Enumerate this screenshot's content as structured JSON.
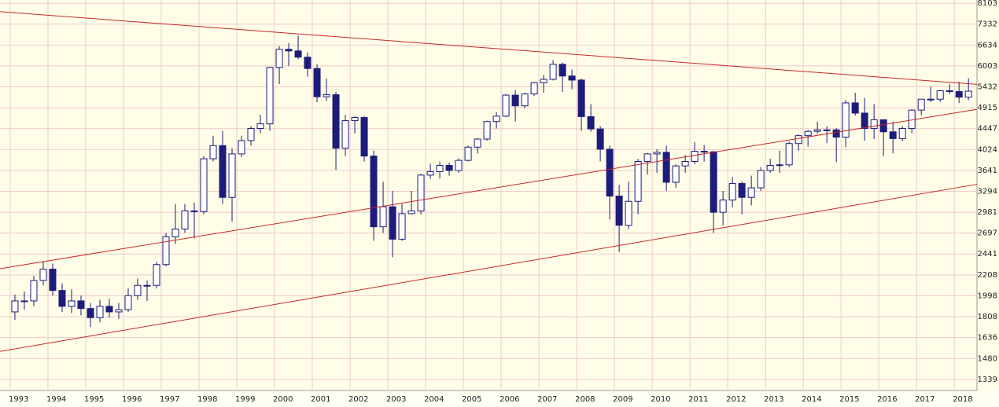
{
  "chart_data": {
    "type": "candlestick",
    "x": [
      1993.125,
      1993.375,
      1993.625,
      1993.875,
      1994.125,
      1994.375,
      1994.625,
      1994.875,
      1995.125,
      1995.375,
      1995.625,
      1995.875,
      1996.125,
      1996.375,
      1996.625,
      1996.875,
      1997.125,
      1997.375,
      1997.625,
      1997.875,
      1998.125,
      1998.375,
      1998.625,
      1998.875,
      1999.125,
      1999.375,
      1999.625,
      1999.875,
      2000.125,
      2000.375,
      2000.625,
      2000.875,
      2001.125,
      2001.375,
      2001.625,
      2001.875,
      2002.125,
      2002.375,
      2002.625,
      2002.875,
      2003.125,
      2003.375,
      2003.625,
      2003.875,
      2004.125,
      2004.375,
      2004.625,
      2004.875,
      2005.125,
      2005.375,
      2005.625,
      2005.875,
      2006.125,
      2006.375,
      2006.625,
      2006.875,
      2007.125,
      2007.375,
      2007.625,
      2007.875,
      2008.125,
      2008.375,
      2008.625,
      2008.875,
      2009.125,
      2009.375,
      2009.625,
      2009.875,
      2010.125,
      2010.375,
      2010.625,
      2010.875,
      2011.125,
      2011.375,
      2011.625,
      2011.875,
      2012.125,
      2012.375,
      2012.625,
      2012.875,
      2013.125,
      2013.375,
      2013.625,
      2013.875,
      2014.125,
      2014.375,
      2014.625,
      2014.875,
      2015.125,
      2015.375,
      2015.625,
      2015.875,
      2016.125,
      2016.375,
      2016.625,
      2016.875,
      2017.125,
      2017.375,
      2017.625,
      2017.875,
      2018.125,
      2018.375
    ],
    "open": [
      1850,
      1950,
      1950,
      2150,
      2270,
      2050,
      1900,
      1950,
      1880,
      1800,
      1900,
      1850,
      1870,
      2000,
      2100,
      2100,
      2320,
      2650,
      2750,
      3000,
      2990,
      3850,
      4100,
      3200,
      3940,
      4200,
      4450,
      4550,
      5960,
      6500,
      6450,
      6260,
      5930,
      5180,
      5230,
      4050,
      4620,
      4690,
      3900,
      2780,
      3060,
      2620,
      2960,
      3000,
      3560,
      3620,
      3730,
      3640,
      3820,
      4070,
      4230,
      4600,
      4720,
      5220,
      4960,
      5250,
      5540,
      5630,
      6050,
      5720,
      5610,
      4710,
      4440,
      4030,
      3220,
      2800,
      3140,
      3800,
      3940,
      3970,
      3440,
      3720,
      3800,
      3990,
      3980,
      2980,
      3160,
      3420,
      3200,
      3350,
      3640,
      3730,
      3740,
      4140,
      4300,
      4390,
      4420,
      4420,
      4270,
      5030,
      4790,
      4450,
      4640,
      4380,
      4240,
      4450,
      4860,
      5120,
      5120,
      5330,
      5310,
      5170
    ],
    "high": [
      2010,
      2040,
      2200,
      2360,
      2330,
      2120,
      2060,
      2000,
      1930,
      1960,
      1970,
      1930,
      2070,
      2170,
      2150,
      2350,
      2700,
      3100,
      3100,
      3120,
      3900,
      4300,
      4400,
      4050,
      4300,
      4500,
      4750,
      5980,
      6600,
      6700,
      6944,
      6400,
      6050,
      5650,
      5300,
      4750,
      4720,
      4720,
      4000,
      3450,
      3300,
      3100,
      3300,
      3580,
      3760,
      3800,
      3780,
      3860,
      4100,
      4250,
      4620,
      4810,
      5250,
      5350,
      5280,
      5560,
      5750,
      6168,
      6100,
      5900,
      5650,
      5000,
      4500,
      4100,
      3400,
      3450,
      3850,
      3960,
      4030,
      4100,
      3750,
      3920,
      4170,
      4110,
      4000,
      3300,
      3530,
      3450,
      3550,
      3700,
      3850,
      4000,
      4180,
      4330,
      4420,
      4600,
      4500,
      4460,
      5100,
      5280,
      5150,
      5000,
      4650,
      4600,
      4500,
      4880,
      5130,
      5440,
      5350,
      5500,
      5570,
      5660
    ],
    "low": [
      1780,
      1870,
      1900,
      2100,
      2000,
      1850,
      1840,
      1820,
      1720,
      1760,
      1800,
      1790,
      1850,
      1960,
      1950,
      2070,
      2300,
      2560,
      2700,
      2630,
      2950,
      3800,
      3100,
      2850,
      3880,
      4100,
      4350,
      4400,
      5500,
      6000,
      6200,
      5700,
      5050,
      5080,
      3650,
      3900,
      4350,
      3800,
      2600,
      2700,
      2403,
      2600,
      2950,
      2950,
      3500,
      3500,
      3550,
      3600,
      3800,
      3950,
      4200,
      4450,
      4700,
      4600,
      4900,
      5200,
      5280,
      5600,
      5300,
      5370,
      4400,
      4380,
      3800,
      2880,
      2465,
      2750,
      2950,
      3570,
      3600,
      3300,
      3350,
      3600,
      3750,
      3800,
      2700,
      2800,
      3050,
      2950,
      3080,
      3300,
      3600,
      3600,
      3700,
      4000,
      4080,
      4340,
      4150,
      3790,
      4070,
      4730,
      4200,
      4230,
      3900,
      3950,
      4190,
      4350,
      4740,
      5050,
      5050,
      5250,
      5030,
      5100
    ],
    "close": [
      1950,
      1950,
      2150,
      2270,
      2050,
      1900,
      1950,
      1880,
      1800,
      1900,
      1850,
      1870,
      2000,
      2100,
      2100,
      2320,
      2650,
      2750,
      3000,
      2990,
      3850,
      4100,
      3200,
      3940,
      4200,
      4450,
      4550,
      5960,
      6500,
      6450,
      6260,
      5930,
      5180,
      5230,
      4050,
      4620,
      4690,
      3900,
      2780,
      3060,
      2620,
      2960,
      3000,
      3560,
      3620,
      3730,
      3640,
      3820,
      4070,
      4230,
      4600,
      4720,
      5220,
      4960,
      5250,
      5540,
      5630,
      6050,
      5720,
      5610,
      4710,
      4440,
      4030,
      3220,
      2800,
      3140,
      3800,
      3940,
      3970,
      3440,
      3720,
      3800,
      3990,
      3980,
      2980,
      3160,
      3420,
      3200,
      3350,
      3640,
      3730,
      3740,
      4140,
      4300,
      4390,
      4420,
      4420,
      4270,
      5030,
      4790,
      4450,
      4640,
      4380,
      4240,
      4450,
      4860,
      5120,
      5120,
      5330,
      5310,
      5170,
      5320
    ],
    "color": "#1c1c7a",
    "background": "#fffde8",
    "grid_color": "#efcaca",
    "trendlines": [
      {
        "color": "#c62828",
        "x": [
          1992.73,
          2018.6
        ],
        "y": [
          7782,
          5497
        ]
      },
      {
        "color": "#c62828",
        "x": [
          1992.73,
          2018.6
        ],
        "y": [
          2275,
          4877
        ]
      },
      {
        "color": "#c62828",
        "x": [
          1992.73,
          2018.6
        ],
        "y": [
          1531,
          3407
        ]
      }
    ],
    "xlim": [
      1992.73,
      2018.6
    ],
    "xticks": [
      1993,
      1994,
      1995,
      1996,
      1997,
      1998,
      1999,
      2000,
      2001,
      2002,
      2003,
      2004,
      2005,
      2006,
      2007,
      2008,
      2009,
      2010,
      2011,
      2012,
      2013,
      2014,
      2015,
      2016,
      2017,
      2018
    ],
    "ylim": [
      1270,
      8230
    ],
    "log_scale": true,
    "yticks": [
      1339,
      1480,
      1636,
      1808,
      1998,
      2208,
      2441,
      2697,
      2981,
      3294,
      3641,
      4024,
      4447,
      4915,
      5432,
      6003,
      6634,
      7332,
      8103
    ],
    "grid": true
  }
}
